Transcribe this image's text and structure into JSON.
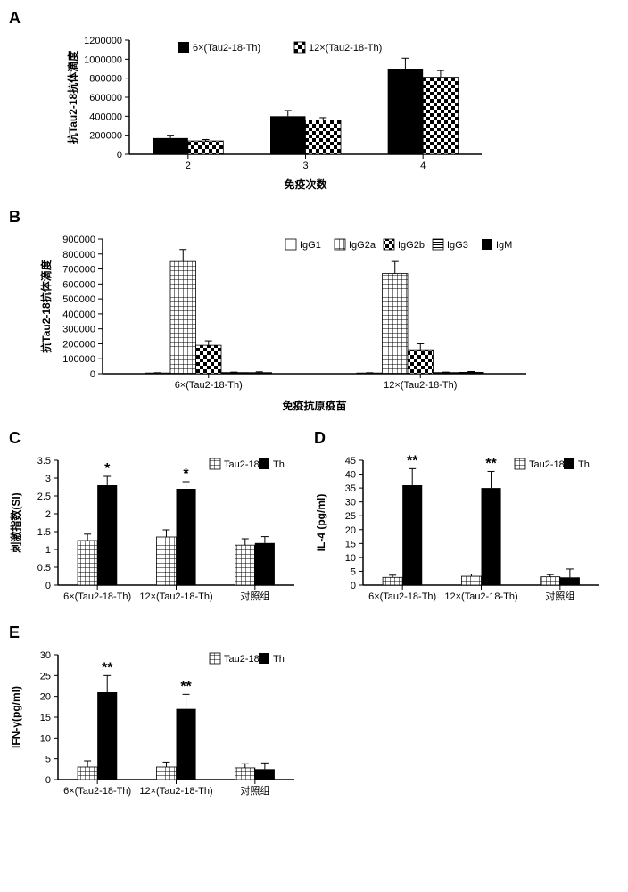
{
  "font": {
    "axis_fontsize": 12,
    "title_fontsize": 12,
    "panel_label_fontsize": 18,
    "tick_fontsize": 11
  },
  "colors": {
    "black": "#000000",
    "white": "#ffffff",
    "gridborder": "#000000"
  },
  "patterns": {
    "solid_black": {
      "type": "solid",
      "fill": "#000000"
    },
    "checker": {
      "type": "checker",
      "fg": "#000000",
      "bg": "#ffffff",
      "size": 4
    },
    "grid": {
      "type": "grid",
      "fg": "#000000",
      "bg": "#ffffff",
      "size": 5
    },
    "horiz": {
      "type": "horiz",
      "fg": "#000000",
      "bg": "#ffffff",
      "size": 3
    },
    "solid_white": {
      "type": "solid",
      "fill": "#ffffff",
      "stroke": "#000000"
    }
  },
  "A": {
    "panel_letter": "A",
    "type": "bar",
    "ylabel": "抗Tau2-18抗体滴度",
    "xlabel": "免疫次数",
    "categories": [
      "2",
      "3",
      "4"
    ],
    "series": [
      {
        "name": "6×(Tau2-18-Th)",
        "pattern": "solid_black",
        "values": [
          170000,
          400000,
          900000
        ],
        "err": [
          30000,
          60000,
          110000
        ]
      },
      {
        "name": "12×(Tau2-18-Th)",
        "pattern": "checker",
        "values": [
          140000,
          360000,
          810000
        ],
        "err": [
          15000,
          25000,
          70000
        ]
      }
    ],
    "ylim": [
      0,
      1200000
    ],
    "ytick_step": 200000,
    "bar_width": 0.3,
    "group_gap": 0.45,
    "legend_pos": "top-inside"
  },
  "B": {
    "panel_letter": "B",
    "type": "bar",
    "ylabel": "抗Tau2-18抗体滴度",
    "xlabel": "免疫抗原疫苗",
    "categories": [
      "6×(Tau2-18-Th)",
      "12×(Tau2-18-Th)"
    ],
    "series": [
      {
        "name": "IgG1",
        "pattern": "solid_white",
        "values": [
          5000,
          5000
        ],
        "err": [
          2000,
          2000
        ]
      },
      {
        "name": "IgG2a",
        "pattern": "grid",
        "values": [
          750000,
          670000
        ],
        "err": [
          80000,
          80000
        ]
      },
      {
        "name": "IgG2b",
        "pattern": "checker",
        "values": [
          190000,
          160000
        ],
        "err": [
          30000,
          40000
        ]
      },
      {
        "name": "IgG3",
        "pattern": "horiz",
        "values": [
          8000,
          8000
        ],
        "err": [
          3000,
          3000
        ]
      },
      {
        "name": "IgM",
        "pattern": "solid_black",
        "values": [
          10000,
          12000
        ],
        "err": [
          3000,
          3000
        ]
      }
    ],
    "ylim": [
      0,
      900000
    ],
    "ytick_step": 100000,
    "bar_width": 0.12,
    "group_gap": 0.25,
    "legend_pos": "top-right"
  },
  "C": {
    "panel_letter": "C",
    "type": "bar",
    "ylabel": "刺激指数(SI)",
    "categories": [
      "6×(Tau2-18-Th)",
      "12×(Tau2-18-Th)",
      "对照组"
    ],
    "series": [
      {
        "name": "Tau2-18",
        "pattern": "grid",
        "values": [
          1.25,
          1.35,
          1.12
        ],
        "err": [
          0.18,
          0.2,
          0.18
        ]
      },
      {
        "name": "Th",
        "pattern": "solid_black",
        "values": [
          2.8,
          2.7,
          1.18
        ],
        "err": [
          0.25,
          0.2,
          0.18
        ]
      }
    ],
    "sig": {
      "Th": [
        "*",
        "*",
        null
      ]
    },
    "ylim": [
      0,
      3.5
    ],
    "ytick_step": 0.5,
    "bar_width": 0.25,
    "group_gap": 0.35
  },
  "D": {
    "panel_letter": "D",
    "type": "bar",
    "ylabel": "IL-4 (pg/ml)",
    "categories": [
      "6×(Tau2-18-Th)",
      "12×(Tau2-18-Th)",
      "对照组"
    ],
    "series": [
      {
        "name": "Tau2-18",
        "pattern": "grid",
        "values": [
          2.8,
          3.2,
          3.0
        ],
        "err": [
          0.8,
          0.8,
          0.8
        ]
      },
      {
        "name": "Th",
        "pattern": "solid_black",
        "values": [
          36,
          35,
          2.8
        ],
        "err": [
          6,
          6,
          3
        ]
      }
    ],
    "sig": {
      "Th": [
        "**",
        "**",
        null
      ]
    },
    "ylim": [
      0,
      45
    ],
    "ytick_step": 5,
    "bar_width": 0.25,
    "group_gap": 0.35
  },
  "E": {
    "panel_letter": "E",
    "type": "bar",
    "ylabel": "IFN-γ(pg/ml)",
    "categories": [
      "6×(Tau2-18-Th)",
      "12×(Tau2-18-Th)",
      "对照组"
    ],
    "series": [
      {
        "name": "Tau2-18",
        "pattern": "grid",
        "values": [
          3.0,
          3.0,
          2.8
        ],
        "err": [
          1.5,
          1.2,
          1.0
        ]
      },
      {
        "name": "Th",
        "pattern": "solid_black",
        "values": [
          21,
          17,
          2.5
        ],
        "err": [
          4,
          3.5,
          1.5
        ]
      }
    ],
    "sig": {
      "Th": [
        "**",
        "**",
        null
      ]
    },
    "ylim": [
      0,
      30
    ],
    "ytick_step": 5,
    "bar_width": 0.25,
    "group_gap": 0.35
  }
}
